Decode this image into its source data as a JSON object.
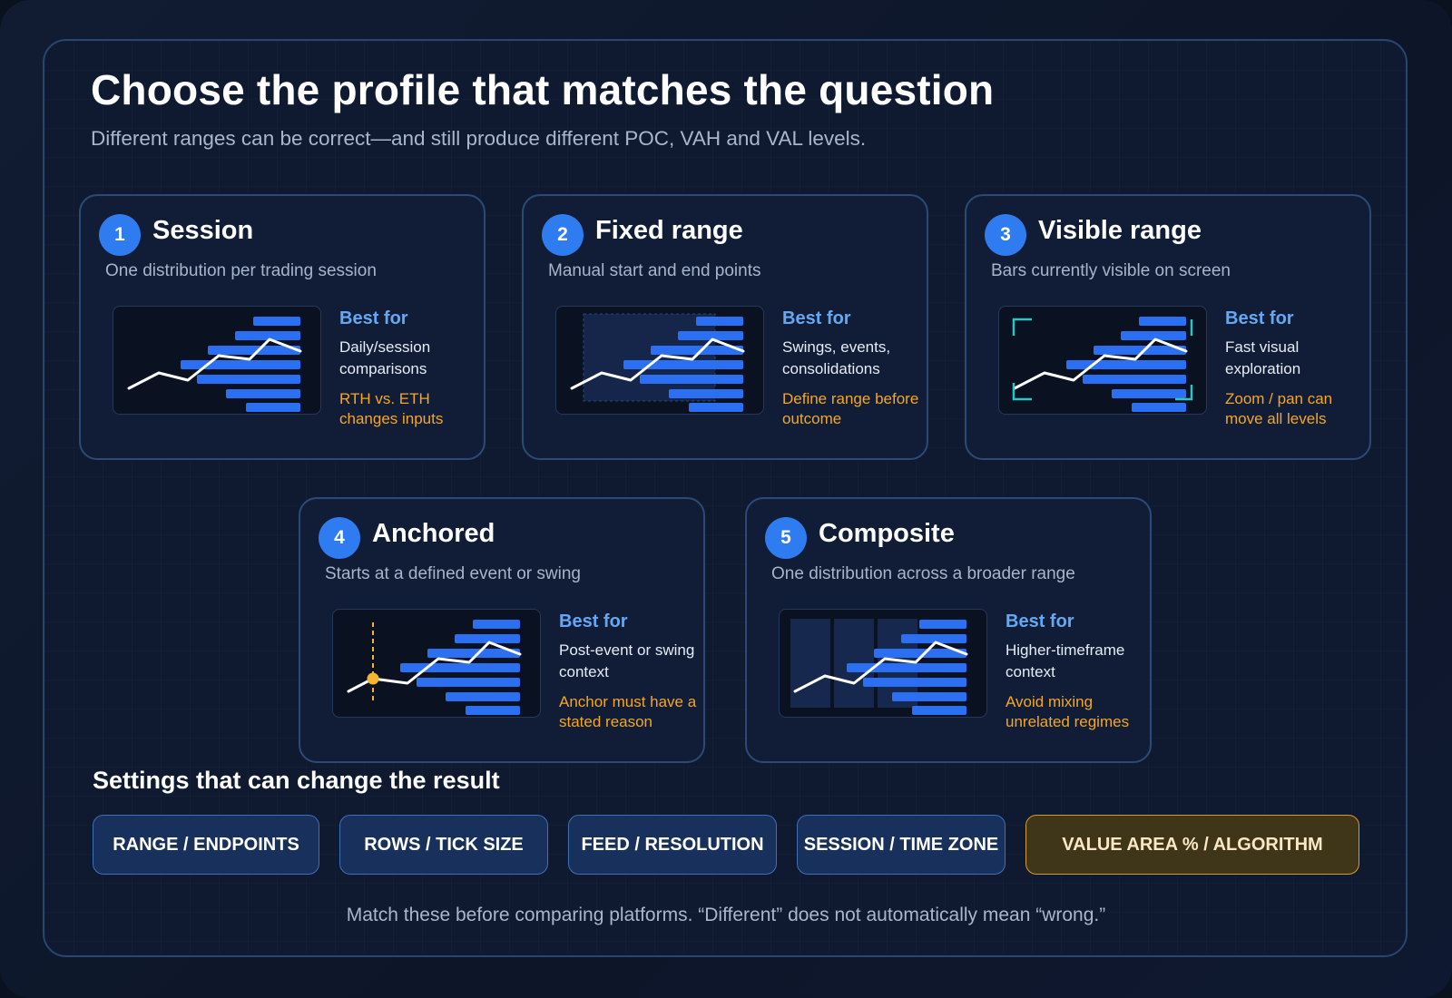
{
  "header": {
    "title": "Choose the profile that matches the question",
    "subtitle": "Different ranges can be correct—and still produce different POC, VAH and VAL levels."
  },
  "cards": [
    {
      "number": "1",
      "title": "Session",
      "description": "One distribution per trading session",
      "best_label": "Best for",
      "best_for": "Daily/session comparisons",
      "caution": "RTH vs. ETH changes inputs"
    },
    {
      "number": "2",
      "title": "Fixed range",
      "description": "Manual start and end points",
      "best_label": "Best for",
      "best_for": "Swings, events, consolidations",
      "caution": "Define range before outcome"
    },
    {
      "number": "3",
      "title": "Visible range",
      "description": "Bars currently visible on screen",
      "best_label": "Best for",
      "best_for": "Fast visual exploration",
      "caution": "Zoom / pan can move all levels"
    },
    {
      "number": "4",
      "title": "Anchored",
      "description": "Starts at a defined event or swing",
      "best_label": "Best for",
      "best_for": "Post-event or swing context",
      "caution": "Anchor must have a stated reason"
    },
    {
      "number": "5",
      "title": "Composite",
      "description": "One distribution across a broader range",
      "best_label": "Best for",
      "best_for": "Higher-timeframe context",
      "caution": "Avoid mixing unrelated regimes"
    }
  ],
  "settings": {
    "heading": "Settings that can change the result",
    "items": [
      "RANGE / ENDPOINTS",
      "ROWS / TICK SIZE",
      "FEED / RESOLUTION",
      "SESSION / TIME ZONE",
      "VALUE AREA % / ALGORITHM"
    ],
    "highlighted_item": "VALUE AREA % / ALGORITHM",
    "footer": "Match these before comparing platforms. “Different” does not automatically mean “wrong.”"
  },
  "colors": {
    "accent_blue": "#2f7cf0",
    "profile_bar": "#2b6ff2",
    "best_for_label": "#64a8f5",
    "caution": "#f5a623",
    "bracket_teal": "#2ec4c4",
    "anchor_gold": "#f5b531"
  }
}
